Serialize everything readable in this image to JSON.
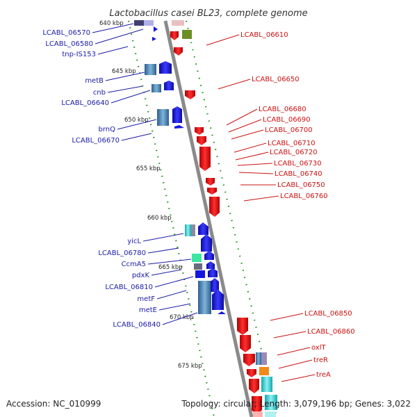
{
  "title": "Lactobacillus casei BL23, complete genome",
  "footer": {
    "accession": "Accession: NC_010999",
    "summary": "Topology: circular; Length: 3,079,196 bp; Genes: 3,022"
  },
  "scale_labels": [
    "640 kbp",
    "645 kbp",
    "650 kbp",
    "655 kbp",
    "660 kbp",
    "665 kbp",
    "670 kbp",
    "675 kbp"
  ],
  "left_labels": [
    "LCABL_06570",
    "LCABL_06580",
    "tnp-IS153",
    "metB",
    "cnb",
    "LCABL_06640",
    "brnQ",
    "LCABL_06670",
    "yicL",
    "LCABL_06780",
    "CcmA5",
    "pdxK",
    "LCABL_06810",
    "metF",
    "metE",
    "LCABL_06840"
  ],
  "right_labels": [
    "LCABL_06610",
    "LCABL_06650",
    "LCABL_06680",
    "LCABL_06690",
    "LCABL_06700",
    "LCABL_06710",
    "LCABL_06720",
    "LCABL_06730",
    "LCABL_06740",
    "LCABL_06750",
    "LCABL_06760",
    "LCABL_06850",
    "LCABL_06860",
    "oxlT",
    "treR",
    "treA"
  ],
  "colors": {
    "backbone": "#8c8c8c",
    "tick": "#1f8a1f",
    "forward_label": "#1a1aa8",
    "reverse_label": "#cc1111",
    "forward_gene": "#1515e0",
    "reverse_gene": "#e81010"
  }
}
